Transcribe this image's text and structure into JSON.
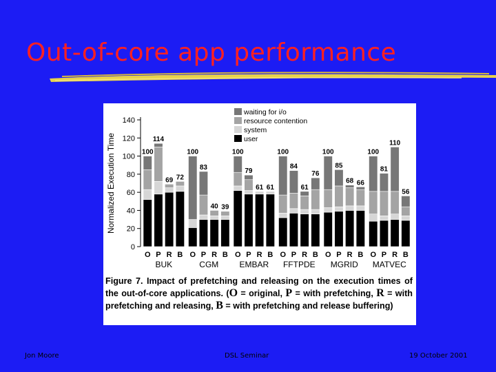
{
  "slide": {
    "title": "Out-of-core app performance",
    "footer_left": "Jon Moore",
    "footer_center": "DSL Seminar",
    "footer_right": "19 October 2001",
    "colors": {
      "background": "#1c1cf4",
      "title": "#ff2020",
      "underline": "#e8d24a"
    }
  },
  "caption": {
    "p1": "Figure 7.  Impact of prefetching and releasing on the execution times of the out-of-core applications.  (",
    "O": "O",
    "p2": " = original, ",
    "P": "P",
    "p3": " = with prefetching, ",
    "R": "R",
    "p4": " = with prefetching and releasing, ",
    "B": "B",
    "p5": " = with prefetching and release buffering)"
  },
  "chart_data": {
    "type": "bar",
    "ylabel": "Normalized Execution Time",
    "ylim": [
      0,
      140
    ],
    "yticks": [
      0,
      20,
      40,
      60,
      80,
      100,
      120,
      140
    ],
    "bar_labels": [
      "O",
      "P",
      "R",
      "B"
    ],
    "legend": [
      "waiting for i/o",
      "resource contention",
      "system",
      "user"
    ],
    "legend_colors": [
      "#777777",
      "#a4a4a4",
      "#d6d6d6",
      "#000000"
    ],
    "groups": [
      {
        "name": "BUK",
        "bars": [
          {
            "label": "100",
            "total": 100,
            "user": 52,
            "system": 11,
            "contention": 22
          },
          {
            "label": "114",
            "total": 114,
            "user": 58,
            "system": 14,
            "contention": 38
          },
          {
            "label": "69",
            "total": 69,
            "user": 60,
            "system": 5,
            "contention": 4
          },
          {
            "label": "72",
            "total": 72,
            "user": 61,
            "system": 6,
            "contention": 5
          }
        ]
      },
      {
        "name": "CGM",
        "bars": [
          {
            "label": "100",
            "total": 100,
            "user": 21,
            "system": 9,
            "contention": 0
          },
          {
            "label": "83",
            "total": 83,
            "user": 30,
            "system": 5,
            "contention": 22
          },
          {
            "label": "40",
            "total": 40,
            "user": 30,
            "system": 4,
            "contention": 6
          },
          {
            "label": "39",
            "total": 39,
            "user": 30,
            "system": 4,
            "contention": 5
          }
        ]
      },
      {
        "name": "EMBAR",
        "bars": [
          {
            "label": "100",
            "total": 100,
            "user": 62,
            "system": 5,
            "contention": 15
          },
          {
            "label": "79",
            "total": 79,
            "user": 58,
            "system": 4,
            "contention": 12
          },
          {
            "label": "61",
            "total": 61,
            "user": 58,
            "system": 3,
            "contention": 0
          },
          {
            "label": "61",
            "total": 61,
            "user": 58,
            "system": 3,
            "contention": 0
          }
        ]
      },
      {
        "name": "FFTPDE",
        "bars": [
          {
            "label": "100",
            "total": 100,
            "user": 32,
            "system": 5,
            "contention": 20
          },
          {
            "label": "84",
            "total": 84,
            "user": 37,
            "system": 5,
            "contention": 17
          },
          {
            "label": "61",
            "total": 61,
            "user": 36,
            "system": 5,
            "contention": 15
          },
          {
            "label": "76",
            "total": 76,
            "user": 36,
            "system": 5,
            "contention": 22
          }
        ]
      },
      {
        "name": "MGRID",
        "bars": [
          {
            "label": "100",
            "total": 100,
            "user": 38,
            "system": 5,
            "contention": 20
          },
          {
            "label": "85",
            "total": 85,
            "user": 39,
            "system": 5,
            "contention": 23
          },
          {
            "label": "68",
            "total": 68,
            "user": 40,
            "system": 5,
            "contention": 20
          },
          {
            "label": "66",
            "total": 66,
            "user": 40,
            "system": 5,
            "contention": 18
          }
        ]
      },
      {
        "name": "MATVEC",
        "bars": [
          {
            "label": "100",
            "total": 100,
            "user": 28,
            "system": 8,
            "contention": 25
          },
          {
            "label": "81",
            "total": 81,
            "user": 29,
            "system": 5,
            "contention": 27
          },
          {
            "label": "110",
            "total": 110,
            "user": 30,
            "system": 6,
            "contention": 25
          },
          {
            "label": "56",
            "total": 56,
            "user": 29,
            "system": 5,
            "contention": 10
          }
        ]
      }
    ]
  }
}
